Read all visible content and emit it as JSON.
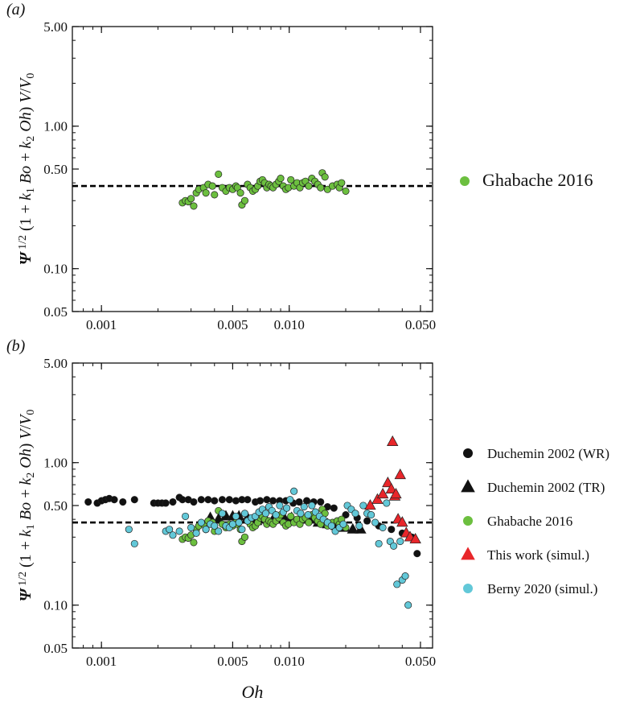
{
  "chart_data": [
    {
      "panel_label": "(a)",
      "type": "scatter",
      "x_scale": "log",
      "y_scale": "log",
      "xlim": [
        0.0007,
        0.058
      ],
      "ylim": [
        0.05,
        5.0
      ],
      "x_ticks": [
        0.001,
        0.005,
        0.01,
        0.05
      ],
      "x_tick_labels": [
        "0.001",
        "0.005",
        "0.010",
        "0.050"
      ],
      "y_ticks": [
        0.05,
        0.1,
        0.5,
        1.0,
        5.0
      ],
      "y_tick_labels": [
        "0.05",
        "0.10",
        "0.50",
        "1.00",
        "5.00"
      ],
      "ylabel": "Ψ 1/2 (1 + k1 Bo + k2 Oh) V/V0",
      "xlabel": "",
      "reference_line": {
        "y": 0.38,
        "style": "dashed",
        "color": "#000000"
      },
      "legend_position": "right",
      "series": [
        {
          "name": "Ghabache 2016",
          "marker": "circle",
          "color": "#6cbf3f",
          "x": [
            0.0027,
            0.0028,
            0.0029,
            0.003,
            0.0031,
            0.0032,
            0.0033,
            0.0035,
            0.0036,
            0.0037,
            0.0039,
            0.004,
            0.0042,
            0.0044,
            0.0046,
            0.0048,
            0.005,
            0.0052,
            0.0053,
            0.0055,
            0.0056,
            0.0058,
            0.006,
            0.0062,
            0.0064,
            0.0066,
            0.0068,
            0.007,
            0.0072,
            0.0074,
            0.0076,
            0.0078,
            0.008,
            0.0082,
            0.0085,
            0.0088,
            0.009,
            0.0093,
            0.0096,
            0.0099,
            0.0102,
            0.0106,
            0.011,
            0.0114,
            0.0118,
            0.0122,
            0.0127,
            0.0132,
            0.0137,
            0.0142,
            0.0147,
            0.015,
            0.0155,
            0.016,
            0.017,
            0.018,
            0.0185,
            0.019,
            0.02
          ],
          "y": [
            0.29,
            0.3,
            0.295,
            0.31,
            0.275,
            0.34,
            0.36,
            0.37,
            0.34,
            0.39,
            0.38,
            0.33,
            0.46,
            0.37,
            0.35,
            0.37,
            0.36,
            0.38,
            0.37,
            0.34,
            0.28,
            0.3,
            0.39,
            0.37,
            0.35,
            0.36,
            0.38,
            0.41,
            0.42,
            0.4,
            0.37,
            0.39,
            0.38,
            0.37,
            0.39,
            0.41,
            0.43,
            0.38,
            0.36,
            0.37,
            0.42,
            0.38,
            0.4,
            0.37,
            0.4,
            0.41,
            0.38,
            0.43,
            0.41,
            0.39,
            0.37,
            0.47,
            0.44,
            0.36,
            0.38,
            0.39,
            0.37,
            0.4,
            0.35
          ]
        }
      ]
    },
    {
      "panel_label": "(b)",
      "type": "scatter",
      "x_scale": "log",
      "y_scale": "log",
      "xlim": [
        0.0007,
        0.058
      ],
      "ylim": [
        0.05,
        5.0
      ],
      "x_ticks": [
        0.001,
        0.005,
        0.01,
        0.05
      ],
      "x_tick_labels": [
        "0.001",
        "0.005",
        "0.010",
        "0.050"
      ],
      "y_ticks": [
        0.05,
        0.1,
        0.5,
        1.0,
        5.0
      ],
      "y_tick_labels": [
        "0.05",
        "0.10",
        "0.50",
        "1.00",
        "5.00"
      ],
      "ylabel": "Ψ 1/2 (1 + k1 Bo + k2 Oh) V/V0",
      "xlabel": "Oh",
      "reference_line": {
        "y": 0.38,
        "style": "dashed",
        "color": "#000000"
      },
      "legend_position": "right",
      "series": [
        {
          "name": "Duchemin 2002 (WR)",
          "marker": "circle",
          "color": "#111111",
          "x": [
            0.00085,
            0.00095,
            0.001,
            0.00105,
            0.0011,
            0.00117,
            0.0013,
            0.0015,
            0.0019,
            0.002,
            0.0021,
            0.0022,
            0.0024,
            0.0026,
            0.0027,
            0.0029,
            0.0031,
            0.0034,
            0.0037,
            0.004,
            0.0044,
            0.0048,
            0.0052,
            0.0056,
            0.006,
            0.0066,
            0.007,
            0.0076,
            0.0082,
            0.0089,
            0.0096,
            0.0105,
            0.0113,
            0.0124,
            0.0135,
            0.0147,
            0.016,
            0.0173,
            0.02,
            0.023,
            0.026,
            0.03,
            0.035,
            0.04,
            0.045,
            0.048
          ],
          "y": [
            0.53,
            0.52,
            0.54,
            0.55,
            0.56,
            0.55,
            0.53,
            0.55,
            0.52,
            0.52,
            0.52,
            0.52,
            0.53,
            0.57,
            0.55,
            0.55,
            0.53,
            0.55,
            0.55,
            0.54,
            0.55,
            0.55,
            0.54,
            0.55,
            0.55,
            0.53,
            0.54,
            0.55,
            0.54,
            0.54,
            0.54,
            0.52,
            0.53,
            0.54,
            0.53,
            0.53,
            0.49,
            0.48,
            0.43,
            0.41,
            0.39,
            0.36,
            0.34,
            0.32,
            0.3,
            0.23
          ]
        },
        {
          "name": "Duchemin 2002 (TR)",
          "marker": "triangle",
          "color": "#111111",
          "x": [
            0.0038,
            0.0042,
            0.0046,
            0.005,
            0.0054,
            0.006,
            0.0067,
            0.0075,
            0.0083,
            0.0093,
            0.0103,
            0.0115,
            0.0128,
            0.0143,
            0.016,
            0.0178,
            0.0197,
            0.0218,
            0.024
          ],
          "y": [
            0.41,
            0.4,
            0.42,
            0.42,
            0.42,
            0.41,
            0.39,
            0.4,
            0.41,
            0.42,
            0.41,
            0.4,
            0.4,
            0.38,
            0.37,
            0.36,
            0.35,
            0.34,
            0.34
          ]
        },
        {
          "name": "Ghabache 2016",
          "marker": "circle",
          "color": "#6cbf3f",
          "x": [
            0.0027,
            0.0028,
            0.0029,
            0.003,
            0.0031,
            0.0032,
            0.0033,
            0.0035,
            0.0036,
            0.0037,
            0.0039,
            0.004,
            0.0042,
            0.0044,
            0.0046,
            0.0048,
            0.005,
            0.0052,
            0.0053,
            0.0055,
            0.0056,
            0.0058,
            0.006,
            0.0062,
            0.0064,
            0.0066,
            0.0068,
            0.007,
            0.0072,
            0.0074,
            0.0076,
            0.0078,
            0.008,
            0.0082,
            0.0085,
            0.0088,
            0.009,
            0.0093,
            0.0096,
            0.0099,
            0.0102,
            0.0106,
            0.011,
            0.0114,
            0.0118,
            0.0122,
            0.0127,
            0.0132,
            0.0137,
            0.0142,
            0.0147,
            0.015,
            0.0155,
            0.016,
            0.017,
            0.018,
            0.0185,
            0.019,
            0.02
          ],
          "y": [
            0.29,
            0.3,
            0.295,
            0.31,
            0.275,
            0.34,
            0.36,
            0.37,
            0.34,
            0.39,
            0.38,
            0.33,
            0.46,
            0.37,
            0.35,
            0.37,
            0.36,
            0.38,
            0.37,
            0.34,
            0.28,
            0.3,
            0.39,
            0.37,
            0.35,
            0.36,
            0.38,
            0.41,
            0.42,
            0.4,
            0.37,
            0.39,
            0.38,
            0.37,
            0.39,
            0.41,
            0.43,
            0.38,
            0.36,
            0.37,
            0.42,
            0.38,
            0.4,
            0.37,
            0.4,
            0.41,
            0.38,
            0.43,
            0.41,
            0.39,
            0.37,
            0.47,
            0.44,
            0.36,
            0.38,
            0.39,
            0.37,
            0.4,
            0.35
          ]
        },
        {
          "name": "This work (simul.)",
          "marker": "triangle",
          "color": "#e8262a",
          "x": [
            0.027,
            0.0295,
            0.0315,
            0.0335,
            0.035,
            0.0355,
            0.0365,
            0.037,
            0.038,
            0.039,
            0.04,
            0.042,
            0.044,
            0.047
          ],
          "y": [
            0.5,
            0.55,
            0.6,
            0.72,
            0.65,
            1.4,
            0.58,
            0.6,
            0.4,
            0.82,
            0.38,
            0.32,
            0.3,
            0.29
          ]
        },
        {
          "name": "Berny 2020 (simul.)",
          "marker": "circle",
          "color": "#62c8d8",
          "x": [
            0.0014,
            0.0015,
            0.0022,
            0.0023,
            0.0024,
            0.0026,
            0.0028,
            0.003,
            0.0032,
            0.0034,
            0.0036,
            0.0038,
            0.004,
            0.0042,
            0.0044,
            0.0046,
            0.0048,
            0.005,
            0.0052,
            0.0054,
            0.0056,
            0.0058,
            0.006,
            0.0063,
            0.0066,
            0.0069,
            0.0072,
            0.0075,
            0.0078,
            0.0081,
            0.0085,
            0.0089,
            0.0093,
            0.0097,
            0.0101,
            0.0106,
            0.011,
            0.0115,
            0.012,
            0.0126,
            0.0132,
            0.0138,
            0.0145,
            0.0152,
            0.016,
            0.0168,
            0.0176,
            0.0185,
            0.0194,
            0.0204,
            0.0214,
            0.0225,
            0.0236,
            0.0248,
            0.026,
            0.0273,
            0.0287,
            0.03,
            0.0315,
            0.033,
            0.0345,
            0.036,
            0.0375,
            0.039,
            0.04,
            0.0415,
            0.043
          ],
          "y": [
            0.34,
            0.27,
            0.33,
            0.34,
            0.31,
            0.33,
            0.42,
            0.35,
            0.32,
            0.38,
            0.34,
            0.37,
            0.36,
            0.33,
            0.44,
            0.36,
            0.35,
            0.37,
            0.42,
            0.38,
            0.34,
            0.44,
            0.39,
            0.41,
            0.42,
            0.45,
            0.47,
            0.44,
            0.49,
            0.46,
            0.43,
            0.5,
            0.45,
            0.48,
            0.55,
            0.63,
            0.46,
            0.44,
            0.49,
            0.43,
            0.5,
            0.45,
            0.42,
            0.4,
            0.38,
            0.36,
            0.33,
            0.35,
            0.37,
            0.5,
            0.47,
            0.44,
            0.36,
            0.5,
            0.44,
            0.43,
            0.38,
            0.27,
            0.35,
            0.52,
            0.28,
            0.26,
            0.14,
            0.28,
            0.15,
            0.16,
            0.1
          ]
        }
      ]
    }
  ]
}
